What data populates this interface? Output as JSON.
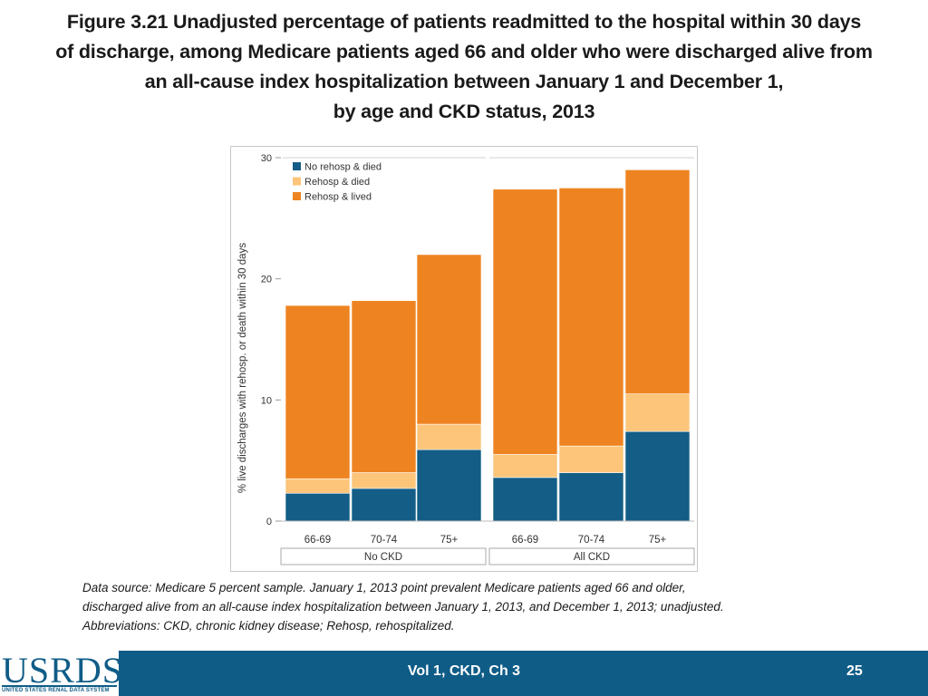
{
  "title": {
    "lines": [
      "Figure 3.21  Unadjusted percentage of patients readmitted to the hospital within 30 days",
      "of discharge, among Medicare patients aged 66 and older who were discharged alive from",
      "an all-cause index hospitalization between January 1 and December 1,",
      "by age and CKD status, 2013"
    ]
  },
  "chart_data": {
    "type": "bar",
    "stacked": true,
    "ylabel": "% live discharges with rehosp. or death within 30 days",
    "ylim": [
      0,
      30
    ],
    "yticks": [
      0,
      10,
      20,
      30
    ],
    "groups": [
      {
        "label": "No CKD",
        "categories": [
          "66-69",
          "70-74",
          "75+"
        ]
      },
      {
        "label": "All CKD",
        "categories": [
          "66-69",
          "70-74",
          "75+"
        ]
      }
    ],
    "categories": [
      "66-69",
      "70-74",
      "75+",
      "66-69",
      "70-74",
      "75+"
    ],
    "series": [
      {
        "name": "No rehosp & died",
        "color": "#135d86",
        "values": [
          2.3,
          2.7,
          5.9,
          3.6,
          4.0,
          7.4
        ]
      },
      {
        "name": "Rehosp & died",
        "color": "#fcc57a",
        "values": [
          1.2,
          1.3,
          2.1,
          1.9,
          2.2,
          3.1
        ]
      },
      {
        "name": "Rehosp & lived",
        "color": "#ee8421",
        "values": [
          14.3,
          14.2,
          14.0,
          21.9,
          21.3,
          18.5
        ]
      }
    ],
    "legend_position": "top-left"
  },
  "footnote": {
    "lines": [
      "Data source: Medicare 5 percent sample. January 1, 2013 point prevalent Medicare patients aged 66 and older,",
      "discharged alive from an all-cause index hospitalization between January 1, 2013, and December 1, 2013; unadjusted.",
      "Abbreviations: CKD, chronic kidney disease; Rehosp, rehospitalized."
    ]
  },
  "footer": {
    "logo_text": "USRDS",
    "logo_subtitle": "UNITED STATES RENAL DATA SYSTEM",
    "center_text": "Vol 1, CKD, Ch 3",
    "page_number": "25",
    "bar_color": "#0f5c87"
  }
}
